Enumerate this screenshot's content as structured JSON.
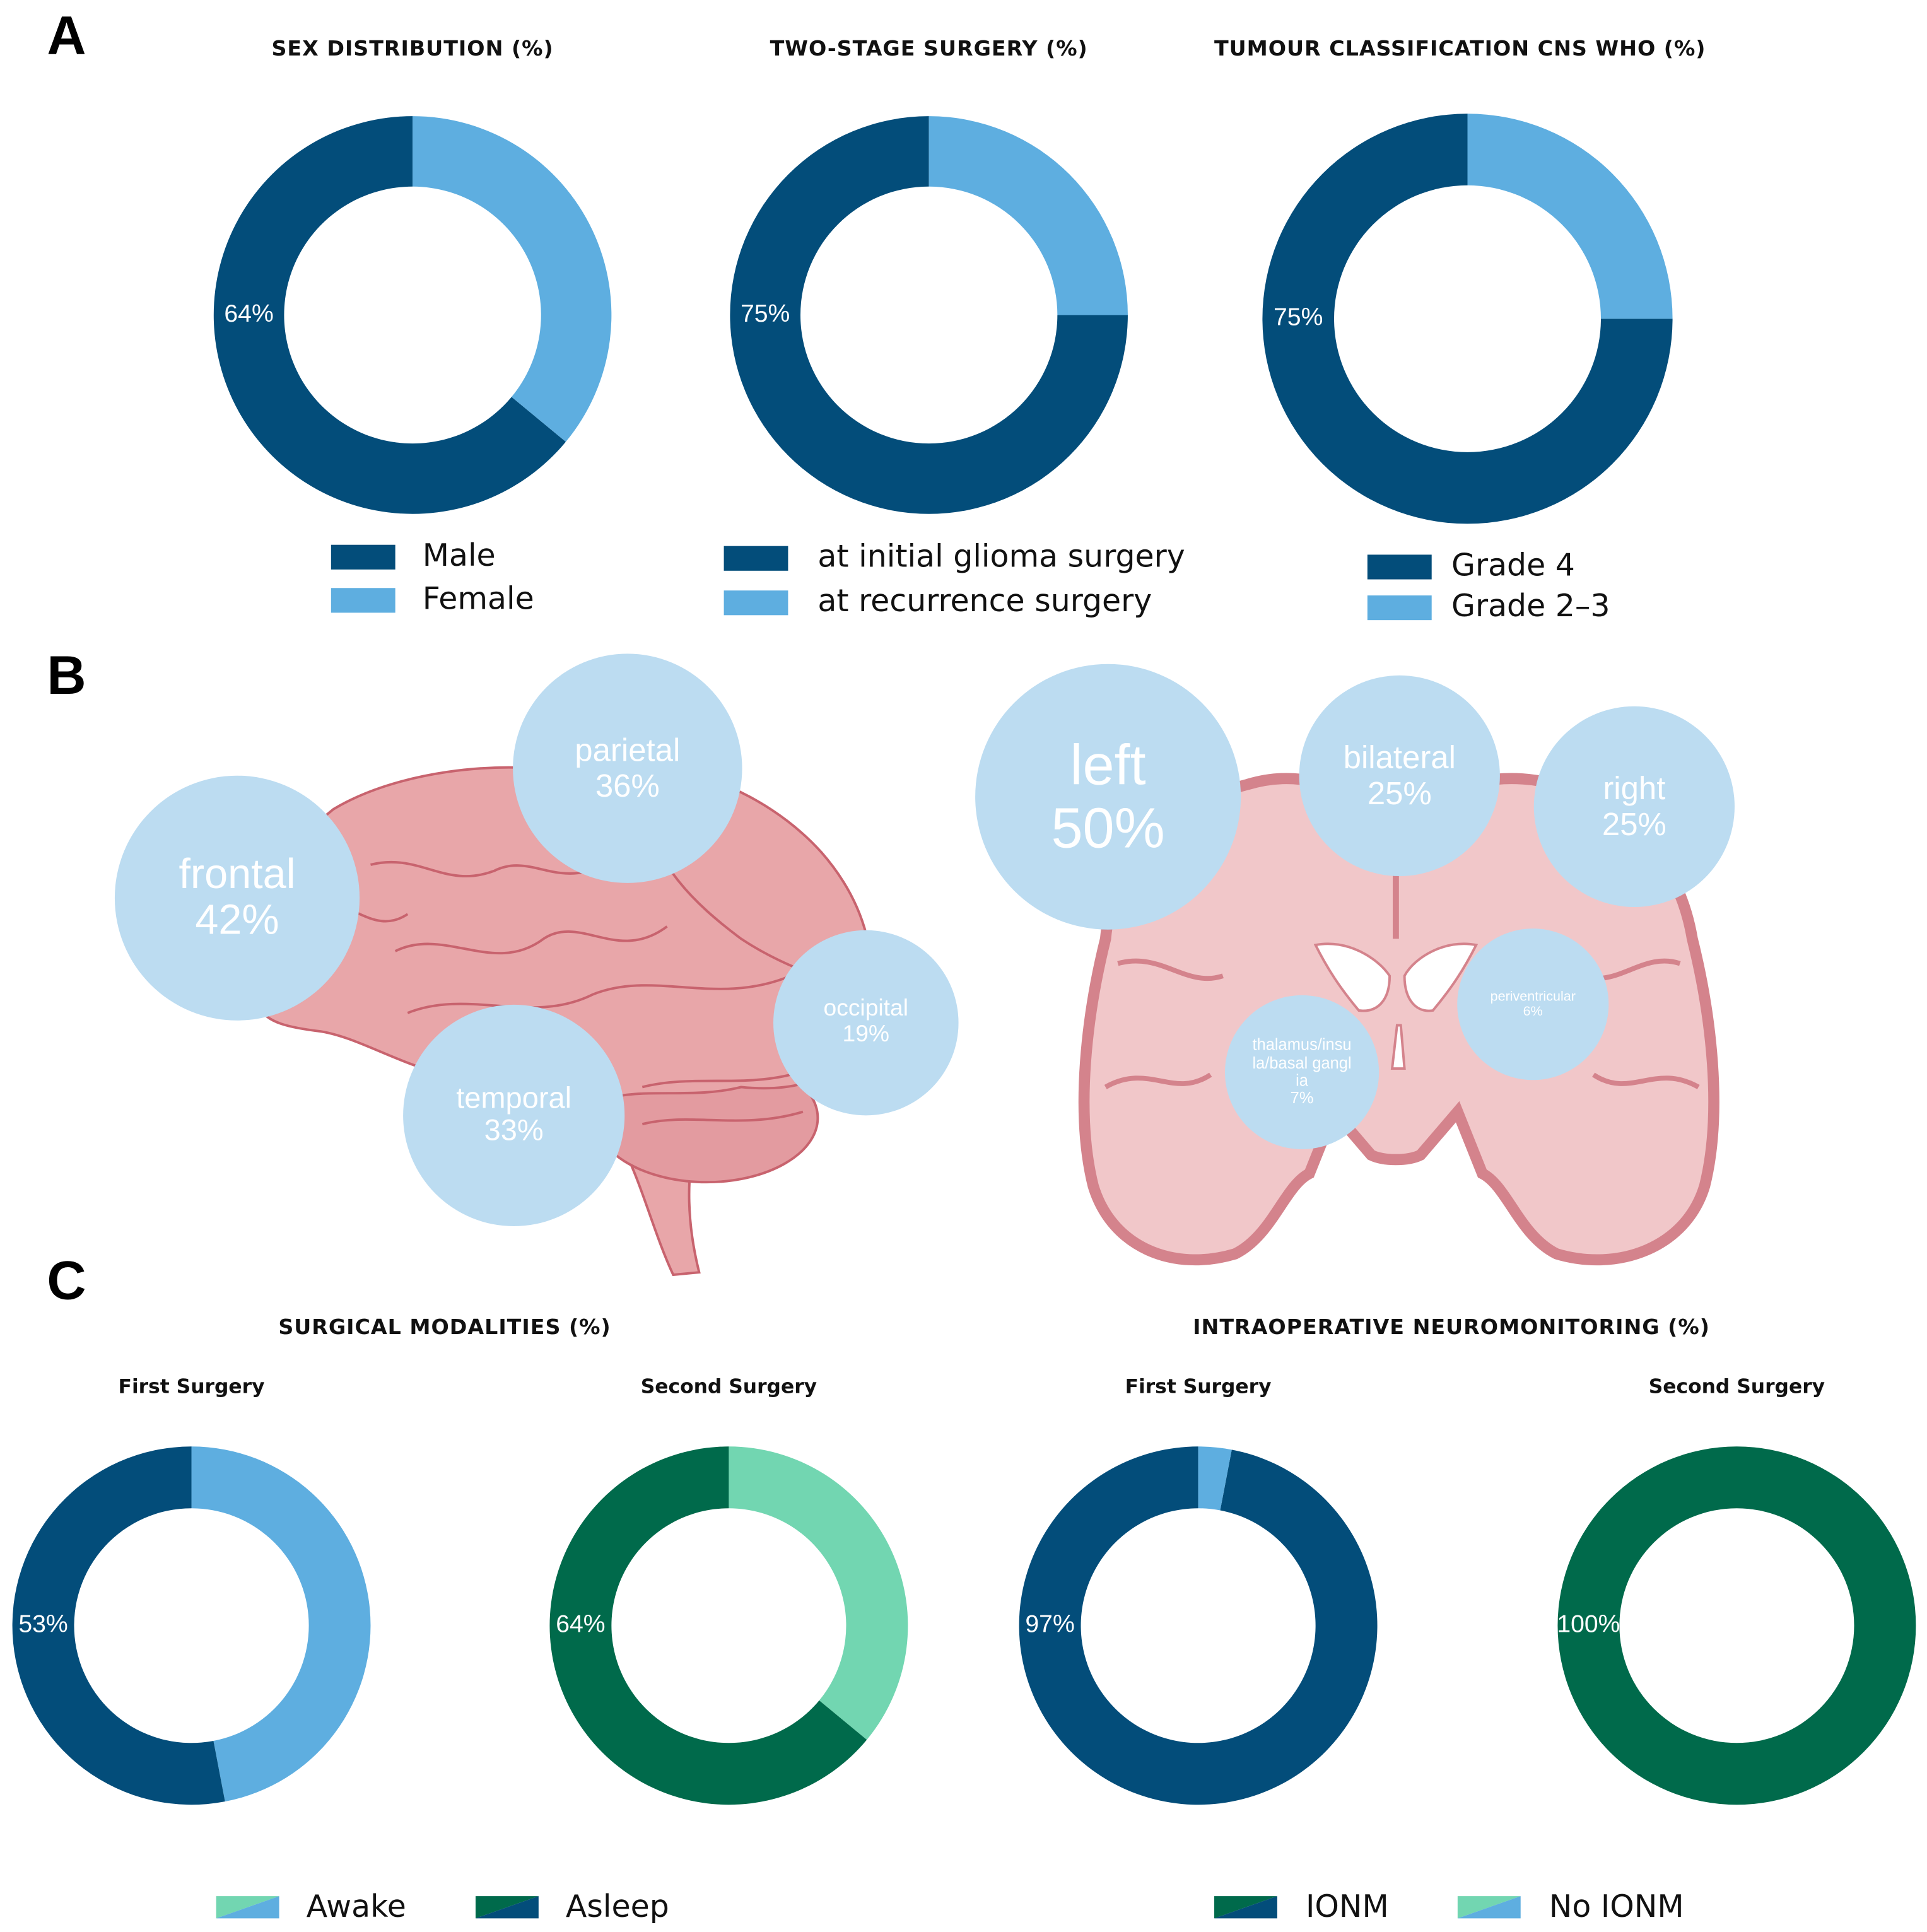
{
  "panel_labels": [
    "A",
    "B",
    "C"
  ],
  "chart_data": [
    {
      "type": "donut",
      "title": "SEX DISTRIBUTION (%)",
      "categories": [
        "Male",
        "Female"
      ],
      "values": [
        64,
        36
      ],
      "value_labels": [
        "64%",
        null
      ],
      "colors": [
        "#034d7a",
        "#5eaee0"
      ],
      "direction": "ccw"
    },
    {
      "type": "donut",
      "title": "TWO-STAGE SURGERY (%)",
      "categories": [
        "at initial glioma surgery",
        "at recurrence surgery"
      ],
      "values": [
        75,
        25
      ],
      "value_labels": [
        "75%",
        null
      ],
      "colors": [
        "#034d7a",
        "#5eaee0"
      ],
      "direction": "ccw"
    },
    {
      "type": "donut",
      "title": "TUMOUR CLASSIFICATION CNS WHO (%)",
      "categories": [
        "Grade 4",
        "Grade 2–3"
      ],
      "values": [
        75,
        25
      ],
      "value_labels": [
        "75%",
        null
      ],
      "colors": [
        "#034d7a",
        "#5eaee0"
      ],
      "direction": "ccw"
    },
    {
      "type": "bubble",
      "categories": [
        "frontal",
        "parietal",
        "temporal",
        "occipital"
      ],
      "values": [
        42,
        36,
        33,
        19
      ],
      "value_labels": [
        "42%",
        "36%",
        "33%",
        "19%"
      ],
      "color": "#bcdcf1"
    },
    {
      "type": "bubble",
      "categories": [
        "left",
        "bilateral",
        "right",
        "periventricular",
        "thalamus/insula/basal ganglia"
      ],
      "values": [
        50,
        25,
        25,
        6,
        7
      ],
      "value_labels": [
        "50%",
        "25%",
        "25%",
        "6%",
        "7%"
      ],
      "color": "#bcdcf1"
    },
    {
      "type": "donut-group",
      "title": "SURGICAL MODALITIES (%)",
      "legend": [
        "Awake",
        "Asleep"
      ],
      "direction": "cw",
      "panels": [
        {
          "subtitle": "First Surgery",
          "values": [
            47,
            53
          ],
          "value_labels": [
            null,
            "53%"
          ],
          "colors": [
            "#5eaee0",
            "#034d7a"
          ]
        },
        {
          "subtitle": "Second Surgery",
          "values": [
            36,
            64
          ],
          "value_labels": [
            null,
            "64%"
          ],
          "colors": [
            "#72d6b1",
            "#006a4b"
          ]
        }
      ]
    },
    {
      "type": "donut-group",
      "title": "INTRAOPERATIVE NEUROMONITORING (%)",
      "legend": [
        "IONM",
        "No IONM"
      ],
      "direction": "ccw",
      "panels": [
        {
          "subtitle": "First Surgery",
          "values": [
            97,
            3
          ],
          "value_labels": [
            "97%",
            null
          ],
          "colors": [
            "#034d7a",
            "#5eaee0"
          ]
        },
        {
          "subtitle": "Second Surgery",
          "values": [
            100,
            0
          ],
          "value_labels": [
            "100%",
            null
          ],
          "colors": [
            "#006a4b",
            "#72d6b1"
          ]
        }
      ]
    }
  ]
}
